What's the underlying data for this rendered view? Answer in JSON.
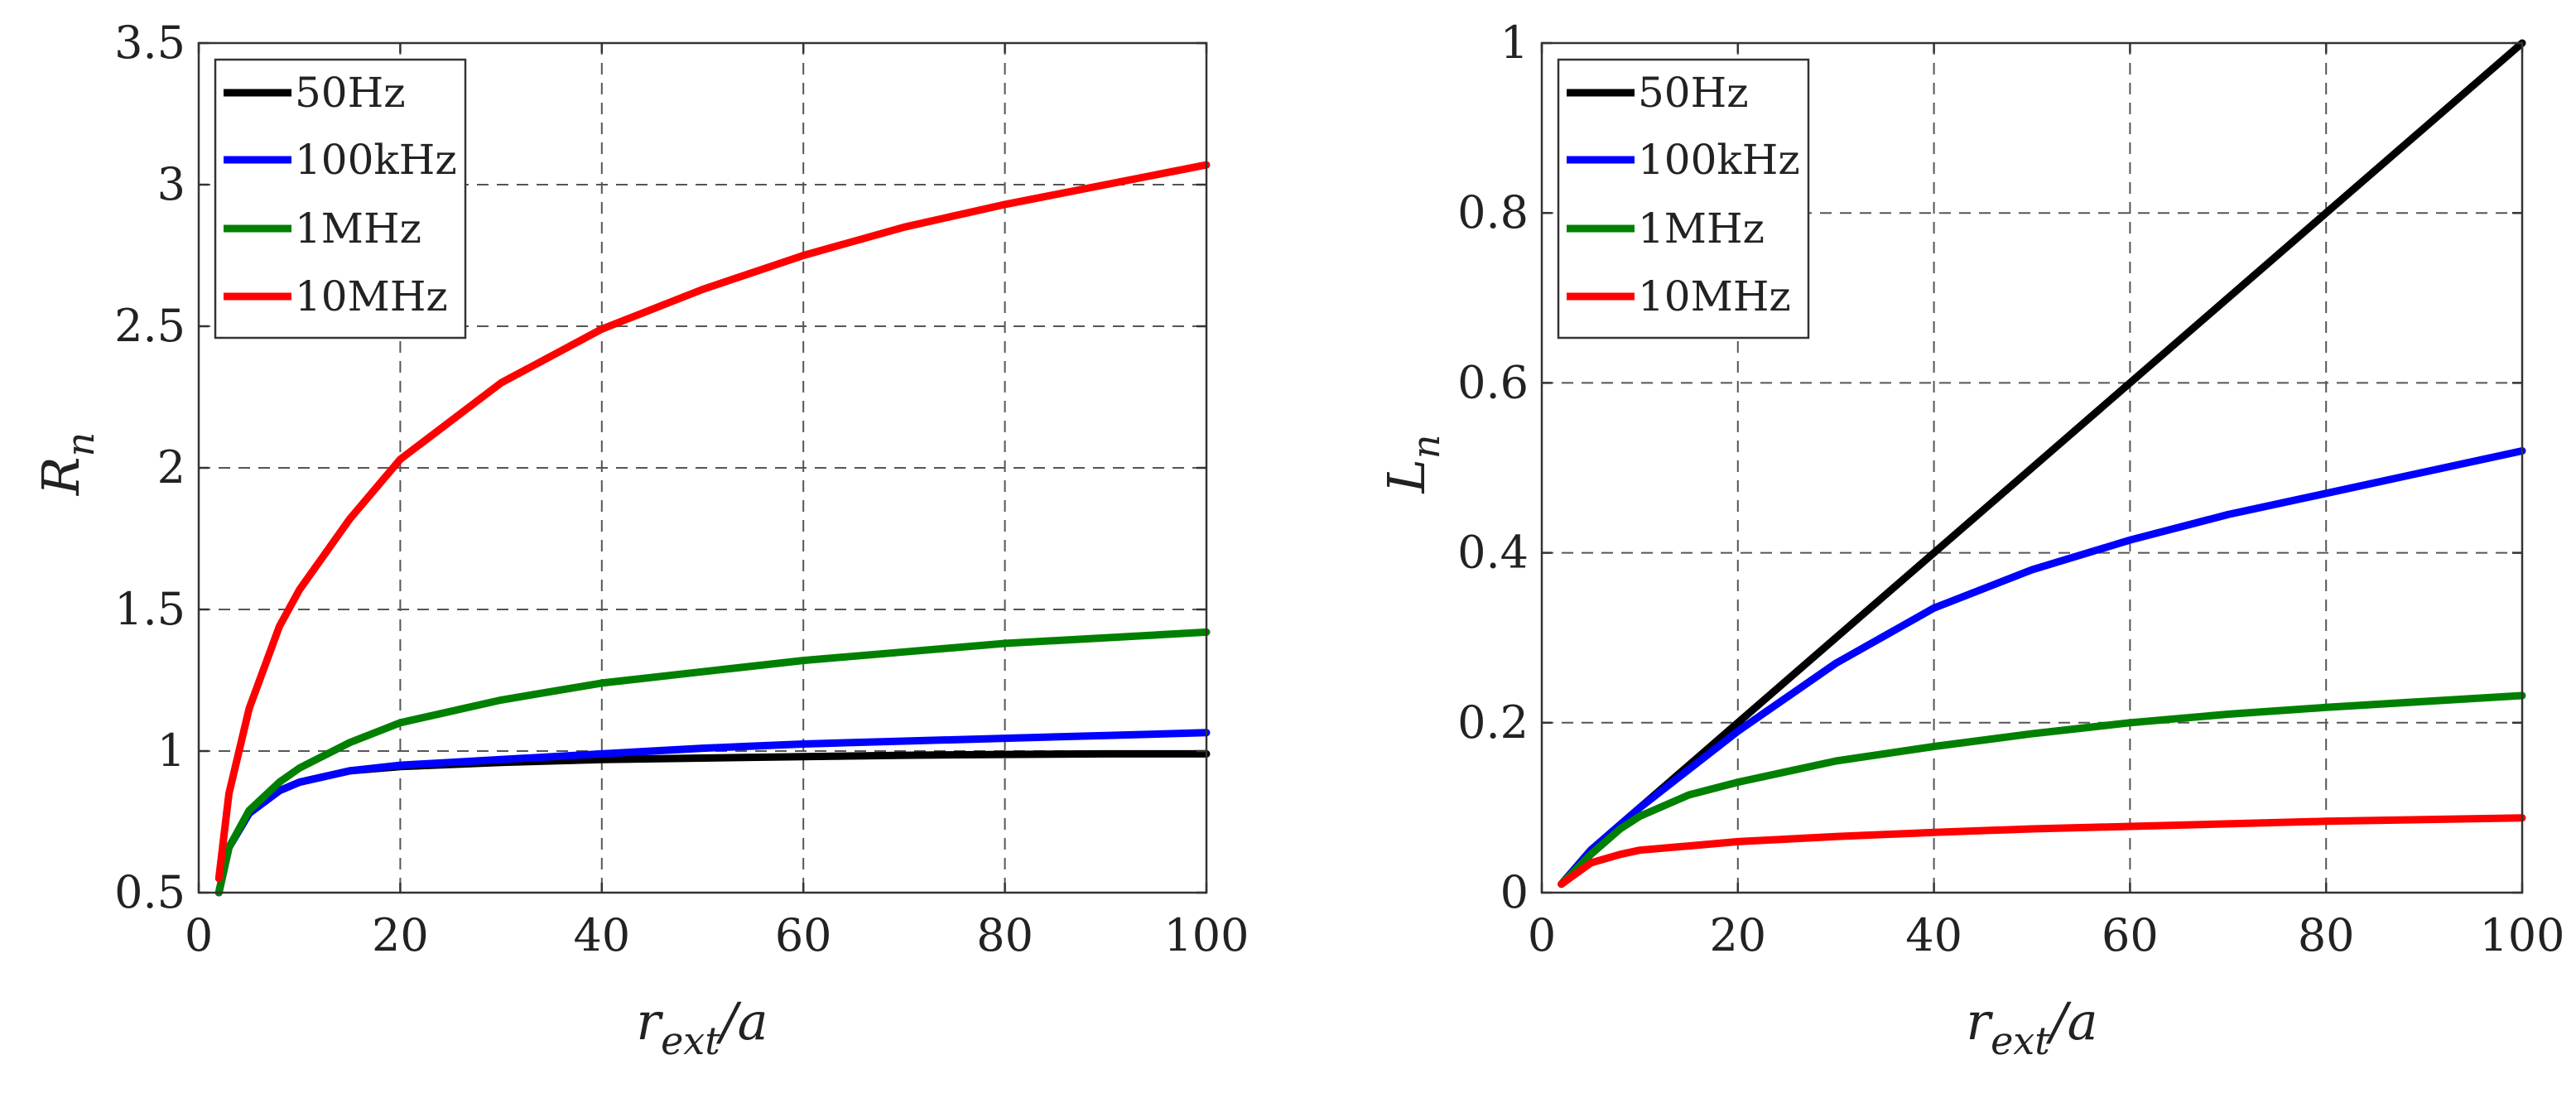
{
  "colors": {
    "c50Hz": "#000000",
    "c100kHz": "#0000ff",
    "c1MHz": "#008000",
    "c10MHz": "#ff0000"
  },
  "chart_data": [
    {
      "type": "line",
      "id": "left",
      "ylabel_main": "R",
      "ylabel_sub": "n",
      "xlabel_main": "r",
      "xlabel_sub": "ext",
      "xlabel_tail": "/a",
      "xlim": [
        0,
        100
      ],
      "ylim": [
        0.5,
        3.5
      ],
      "xticks": [
        0,
        20,
        40,
        60,
        80,
        100
      ],
      "xtick_labels": [
        "0",
        "20",
        "40",
        "60",
        "80",
        "100"
      ],
      "yticks": [
        0.5,
        1,
        1.5,
        2,
        2.5,
        3,
        3.5
      ],
      "ytick_labels": [
        "0.5",
        "1",
        "1.5",
        "2",
        "2.5",
        "3",
        "3.5"
      ],
      "grid": true,
      "legend": "top-left",
      "x": [
        2,
        3,
        5,
        8,
        10,
        15,
        20,
        30,
        40,
        50,
        60,
        70,
        80,
        90,
        100
      ],
      "series": [
        {
          "name": "50Hz",
          "color": "#000000",
          "values": [
            0.5,
            0.66,
            0.78,
            0.86,
            0.89,
            0.93,
            0.945,
            0.96,
            0.97,
            0.975,
            0.98,
            0.985,
            0.988,
            0.99,
            0.99
          ]
        },
        {
          "name": "100kHz",
          "color": "#0000ff",
          "values": [
            0.5,
            0.66,
            0.78,
            0.86,
            0.89,
            0.93,
            0.95,
            0.97,
            0.99,
            1.01,
            1.025,
            1.035,
            1.045,
            1.055,
            1.065
          ]
        },
        {
          "name": "1MHz",
          "color": "#008000",
          "values": [
            0.5,
            0.66,
            0.79,
            0.89,
            0.94,
            1.03,
            1.1,
            1.18,
            1.24,
            1.28,
            1.32,
            1.35,
            1.38,
            1.4,
            1.42
          ]
        },
        {
          "name": "10MHz",
          "color": "#ff0000",
          "values": [
            0.55,
            0.85,
            1.15,
            1.44,
            1.57,
            1.82,
            2.03,
            2.3,
            2.49,
            2.63,
            2.75,
            2.85,
            2.93,
            3.0,
            3.07
          ]
        }
      ]
    },
    {
      "type": "line",
      "id": "right",
      "ylabel_main": "L",
      "ylabel_sub": "n",
      "xlabel_main": "r",
      "xlabel_sub": "ext",
      "xlabel_tail": "/a",
      "xlim": [
        0,
        100
      ],
      "ylim": [
        0,
        1
      ],
      "xticks": [
        0,
        20,
        40,
        60,
        80,
        100
      ],
      "xtick_labels": [
        "0",
        "20",
        "40",
        "60",
        "80",
        "100"
      ],
      "yticks": [
        0,
        0.2,
        0.4,
        0.6,
        0.8,
        1
      ],
      "ytick_labels": [
        "0",
        "0.2",
        "0.4",
        "0.6",
        "0.8",
        "1"
      ],
      "grid": true,
      "legend": "top-left",
      "x": [
        2,
        5,
        8,
        10,
        15,
        20,
        30,
        40,
        50,
        60,
        70,
        80,
        90,
        100
      ],
      "series": [
        {
          "name": "50Hz",
          "color": "#000000",
          "values": [
            0.01,
            0.05,
            0.08,
            0.1,
            0.15,
            0.2,
            0.3,
            0.4,
            0.5,
            0.6,
            0.7,
            0.8,
            0.9,
            1.0
          ]
        },
        {
          "name": "100kHz",
          "color": "#0000ff",
          "values": [
            0.01,
            0.05,
            0.08,
            0.1,
            0.145,
            0.19,
            0.27,
            0.335,
            0.38,
            0.415,
            0.445,
            0.47,
            0.495,
            0.52
          ]
        },
        {
          "name": "1MHz",
          "color": "#008000",
          "values": [
            0.01,
            0.045,
            0.075,
            0.09,
            0.115,
            0.13,
            0.155,
            0.172,
            0.187,
            0.2,
            0.21,
            0.218,
            0.225,
            0.232
          ]
        },
        {
          "name": "10MHz",
          "color": "#ff0000",
          "values": [
            0.01,
            0.035,
            0.045,
            0.05,
            0.055,
            0.06,
            0.066,
            0.071,
            0.075,
            0.078,
            0.081,
            0.084,
            0.086,
            0.088
          ]
        }
      ]
    }
  ]
}
